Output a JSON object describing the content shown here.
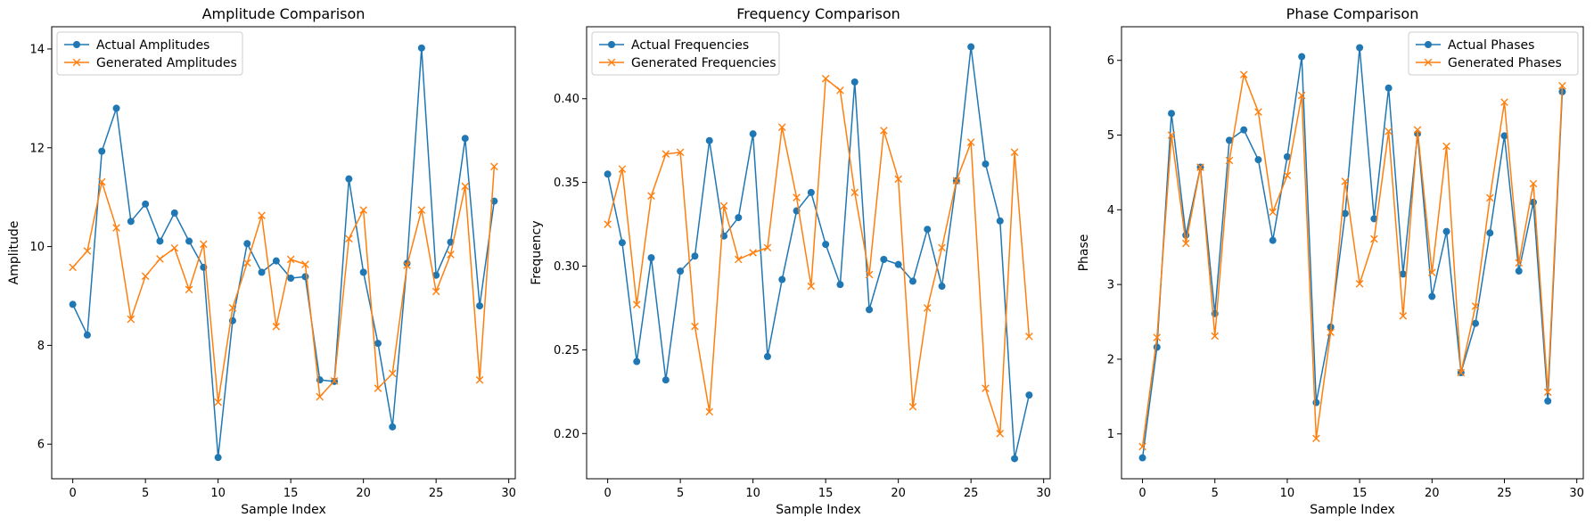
{
  "colors": {
    "actual": "#1f77b4",
    "generated": "#ff7f0e"
  },
  "chart_data": [
    {
      "type": "line",
      "title": "Amplitude Comparison",
      "xlabel": "Sample Index",
      "ylabel": "Amplitude",
      "xlim": [
        -1.45,
        30.45
      ],
      "ylim": [
        5.3,
        14.45
      ],
      "xticks": [
        0,
        5,
        10,
        15,
        20,
        25,
        30
      ],
      "yticks": [
        6,
        8,
        10,
        12,
        14
      ],
      "ytick_decimals": 0,
      "legend_position": "upper-left",
      "x": [
        0,
        1,
        2,
        3,
        4,
        5,
        6,
        7,
        8,
        9,
        10,
        11,
        12,
        13,
        14,
        15,
        16,
        17,
        18,
        19,
        20,
        21,
        22,
        23,
        24,
        25,
        26,
        27,
        28,
        29
      ],
      "series": [
        {
          "name": "Actual Amplitudes",
          "marker": "circle",
          "values": [
            8.83,
            8.21,
            11.93,
            12.8,
            10.51,
            10.86,
            10.11,
            10.68,
            10.11,
            9.58,
            5.73,
            8.5,
            10.06,
            9.48,
            9.71,
            9.36,
            9.39,
            7.3,
            7.27,
            11.37,
            9.48,
            8.04,
            6.35,
            9.66,
            14.02,
            9.42,
            10.09,
            12.19,
            8.8,
            10.92
          ]
        },
        {
          "name": "Generated Amplitudes",
          "marker": "x",
          "values": [
            9.58,
            9.91,
            11.31,
            10.38,
            8.53,
            9.4,
            9.75,
            9.97,
            9.13,
            10.05,
            6.85,
            8.76,
            9.67,
            10.63,
            8.38,
            9.74,
            9.64,
            6.96,
            7.28,
            10.16,
            10.74,
            7.13,
            7.43,
            9.62,
            10.74,
            9.09,
            9.84,
            11.22,
            7.3,
            11.62
          ]
        }
      ]
    },
    {
      "type": "line",
      "title": "Frequency Comparison",
      "xlabel": "Sample Index",
      "ylabel": "Frequency",
      "xlim": [
        -1.45,
        30.45
      ],
      "ylim": [
        0.173,
        0.443
      ],
      "xticks": [
        0,
        5,
        10,
        15,
        20,
        25,
        30
      ],
      "yticks": [
        0.2,
        0.25,
        0.3,
        0.35,
        0.4
      ],
      "ytick_decimals": 2,
      "legend_position": "upper-left",
      "x": [
        0,
        1,
        2,
        3,
        4,
        5,
        6,
        7,
        8,
        9,
        10,
        11,
        12,
        13,
        14,
        15,
        16,
        17,
        18,
        19,
        20,
        21,
        22,
        23,
        24,
        25,
        26,
        27,
        28,
        29
      ],
      "series": [
        {
          "name": "Actual Frequencies",
          "marker": "circle",
          "values": [
            0.355,
            0.314,
            0.243,
            0.305,
            0.232,
            0.297,
            0.306,
            0.375,
            0.318,
            0.329,
            0.379,
            0.246,
            0.292,
            0.333,
            0.344,
            0.313,
            0.289,
            0.41,
            0.274,
            0.304,
            0.301,
            0.291,
            0.322,
            0.288,
            0.351,
            0.431,
            0.361,
            0.327,
            0.185,
            0.223
          ]
        },
        {
          "name": "Generated Frequencies",
          "marker": "x",
          "values": [
            0.325,
            0.358,
            0.277,
            0.342,
            0.367,
            0.368,
            0.264,
            0.213,
            0.336,
            0.304,
            0.308,
            0.311,
            0.383,
            0.341,
            0.288,
            0.412,
            0.405,
            0.344,
            0.295,
            0.381,
            0.352,
            0.216,
            0.275,
            0.311,
            0.351,
            0.374,
            0.227,
            0.2,
            0.368,
            0.258
          ]
        }
      ]
    },
    {
      "type": "line",
      "title": "Phase Comparison",
      "xlabel": "Sample Index",
      "ylabel": "Phase",
      "xlim": [
        -1.45,
        30.45
      ],
      "ylim": [
        0.4,
        6.45
      ],
      "xticks": [
        0,
        5,
        10,
        15,
        20,
        25,
        30
      ],
      "yticks": [
        1,
        2,
        3,
        4,
        5,
        6
      ],
      "ytick_decimals": 0,
      "legend_position": "upper-right",
      "x": [
        0,
        1,
        2,
        3,
        4,
        5,
        6,
        7,
        8,
        9,
        10,
        11,
        12,
        13,
        14,
        15,
        16,
        17,
        18,
        19,
        20,
        21,
        22,
        23,
        24,
        25,
        26,
        27,
        28,
        29
      ],
      "series": [
        {
          "name": "Actual Phases",
          "marker": "circle",
          "values": [
            0.68,
            2.16,
            5.29,
            3.66,
            4.57,
            2.61,
            4.93,
            5.07,
            4.67,
            3.59,
            4.71,
            6.05,
            1.42,
            2.43,
            3.95,
            6.17,
            3.88,
            5.63,
            3.14,
            5.02,
            2.84,
            3.71,
            1.82,
            2.48,
            3.69,
            4.99,
            3.18,
            4.1,
            1.44,
            5.58
          ]
        },
        {
          "name": "Generated Phases",
          "marker": "x",
          "values": [
            0.83,
            2.29,
            5.0,
            3.55,
            4.57,
            2.31,
            4.66,
            5.81,
            5.31,
            3.97,
            4.46,
            5.53,
            0.94,
            2.36,
            4.38,
            3.01,
            3.61,
            5.05,
            2.58,
            5.07,
            3.16,
            4.85,
            1.82,
            2.71,
            4.16,
            5.44,
            3.29,
            4.35,
            1.56,
            5.66
          ]
        }
      ]
    }
  ]
}
